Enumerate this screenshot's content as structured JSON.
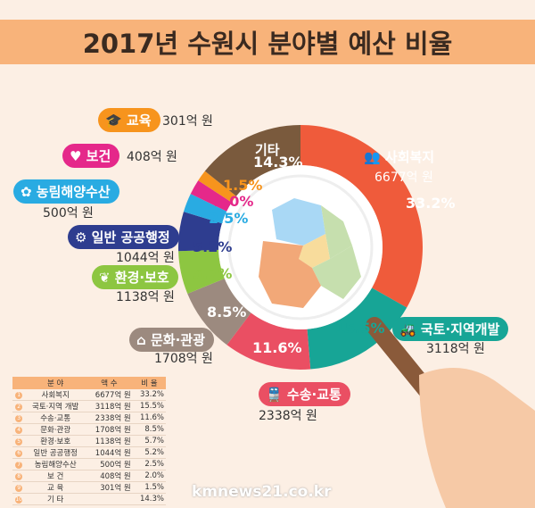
{
  "title": "2017년 수원시 분야별 예산 비율",
  "site": "kmnews21.co.kr",
  "chart_data": {
    "type": "pie",
    "title": "2017년 수원시 분야별 예산 비율",
    "donut": true,
    "categories": [
      "사회복지",
      "국토·지역개발",
      "수송·교통",
      "문화·관광",
      "환경·보호",
      "일반 공공행정",
      "농림해양수산",
      "보건",
      "교육",
      "기타"
    ],
    "amounts": [
      "6677억 원",
      "3118억 원",
      "2338억 원",
      "1708억 원",
      "1138억 원",
      "1044억 원",
      "500억 원",
      "408억 원",
      "301억 원",
      ""
    ],
    "values": [
      33.2,
      15.5,
      11.6,
      8.5,
      5.7,
      5.2,
      2.5,
      2.0,
      1.5,
      14.3
    ],
    "pct_labels": [
      "33.2%",
      "15.5%",
      "11.6%",
      "8.5%",
      "5.7%",
      "5.2%",
      "2.5%",
      "2.0%",
      "1.5%",
      "14.3%"
    ],
    "colors": [
      "#ef5b3b",
      "#17a596",
      "#ea4f63",
      "#9c8a7f",
      "#8dc641",
      "#2e3d8f",
      "#29abe2",
      "#e5288a",
      "#f7941d",
      "#7a5a3d"
    ]
  },
  "table": {
    "headers": [
      "분 야",
      "액 수",
      "비 율"
    ],
    "rows": [
      {
        "n": "1",
        "name": "사회복지",
        "amt": "6677억 원",
        "pct": "33.2%"
      },
      {
        "n": "2",
        "name": "국토·지역 개발",
        "amt": "3118억 원",
        "pct": "15.5%"
      },
      {
        "n": "3",
        "name": "수송·교통",
        "amt": "2338억 원",
        "pct": "11.6%"
      },
      {
        "n": "4",
        "name": "문화·관광",
        "amt": "1708억 원",
        "pct": "8.5%"
      },
      {
        "n": "5",
        "name": "환경·보호",
        "amt": "1138억 원",
        "pct": "5.7%"
      },
      {
        "n": "6",
        "name": "일반 공공행정",
        "amt": "1044억 원",
        "pct": "5.2%"
      },
      {
        "n": "7",
        "name": "농림해양수산",
        "amt": "500억 원",
        "pct": "2.5%"
      },
      {
        "n": "8",
        "name": "보 건",
        "amt": "408억 원",
        "pct": "2.0%"
      },
      {
        "n": "9",
        "name": "교 육",
        "amt": "301억 원",
        "pct": "1.5%"
      },
      {
        "n": "10",
        "name": "기 타",
        "amt": "",
        "pct": "14.3%"
      }
    ]
  }
}
